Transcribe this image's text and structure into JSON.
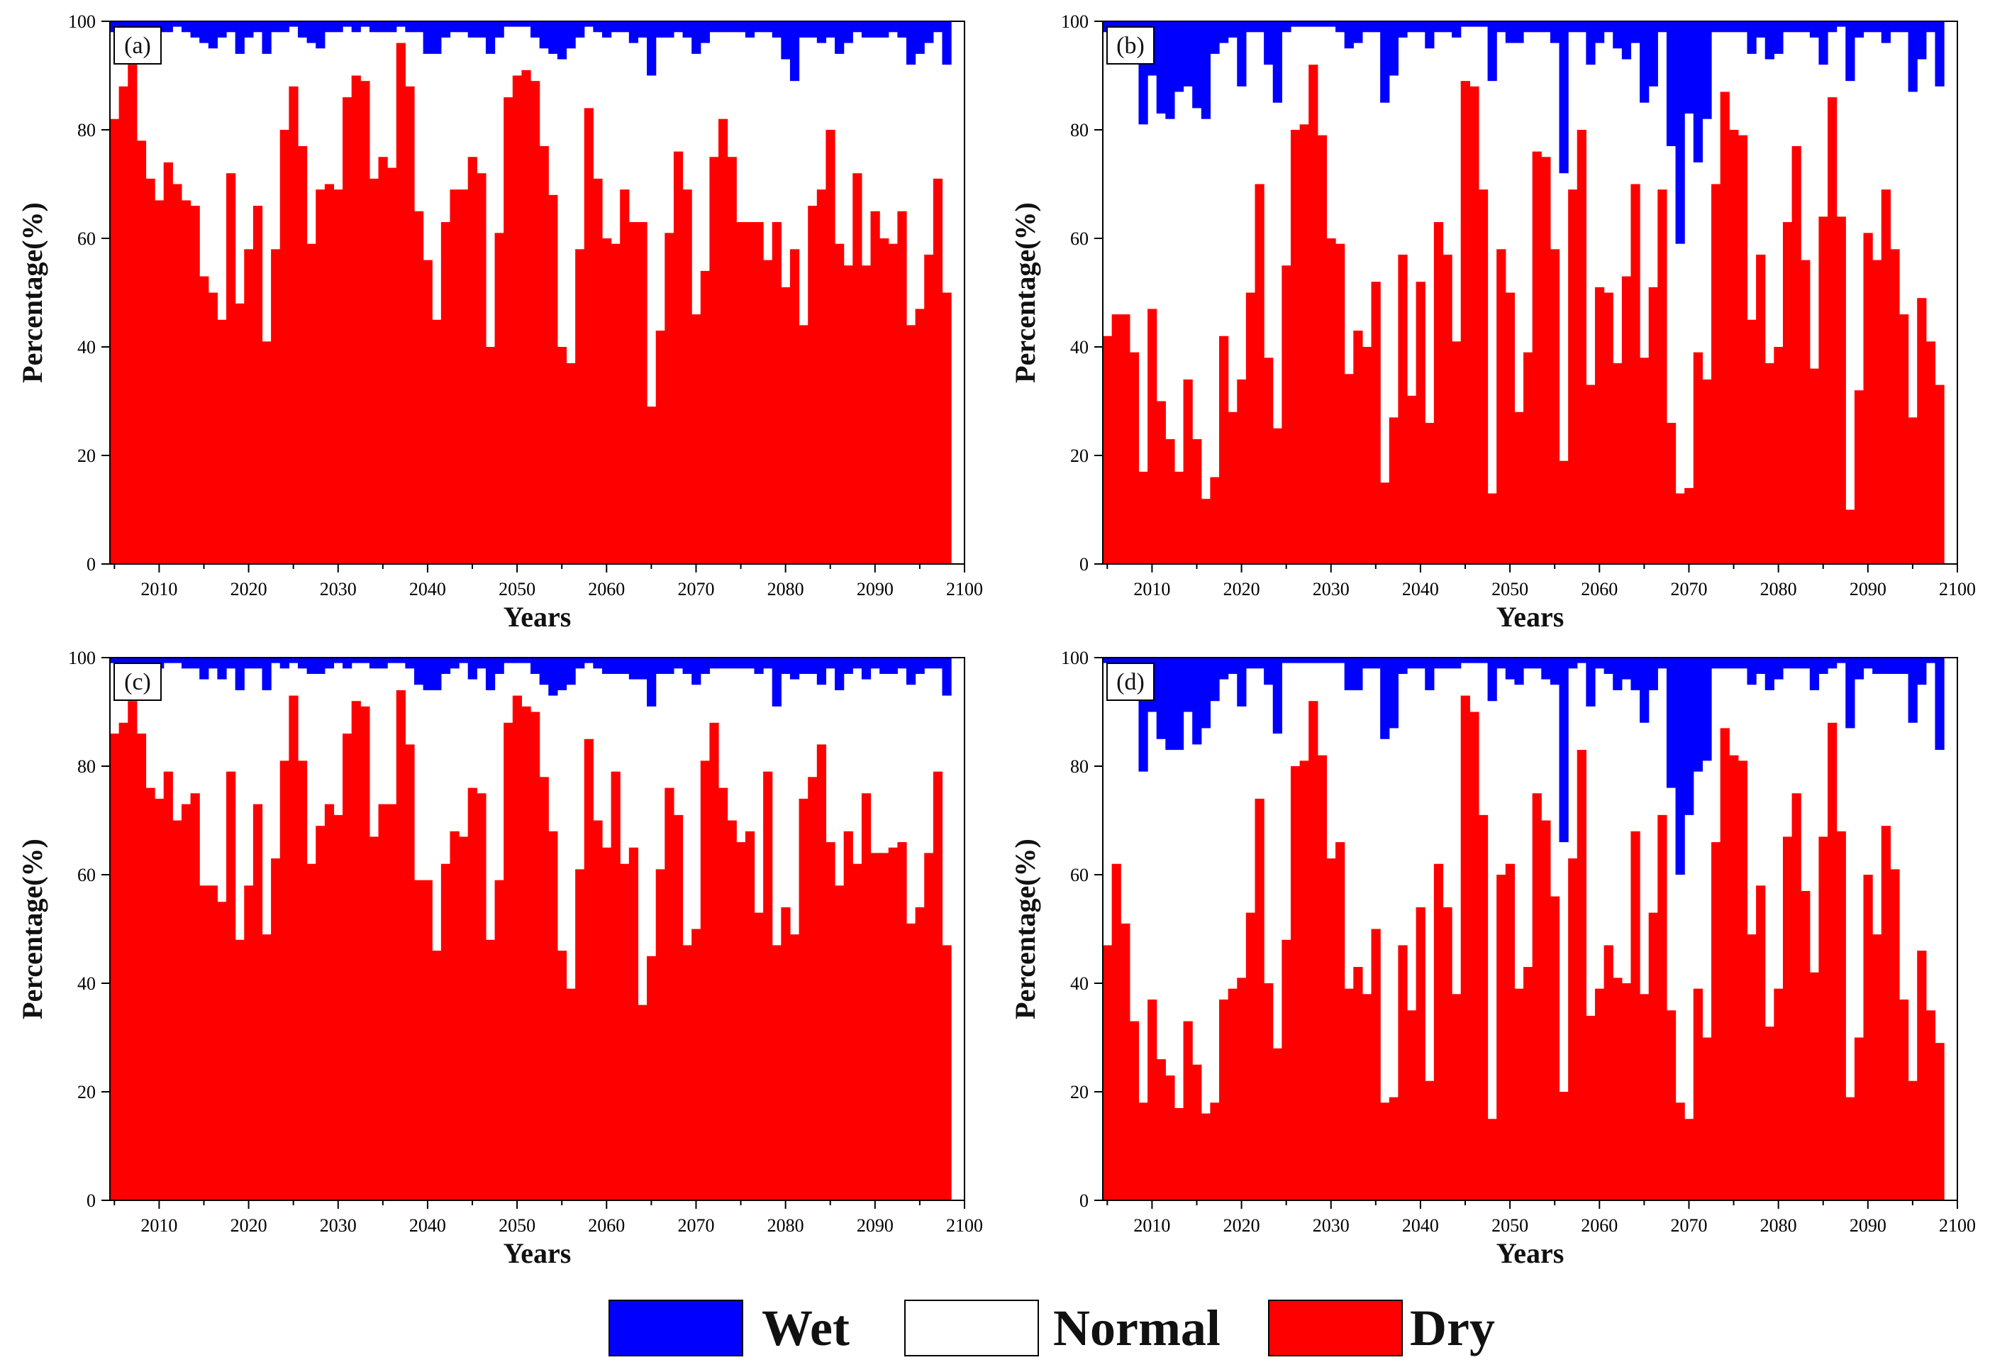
{
  "colors": {
    "wet": "#0000ff",
    "normal": "#ffffff",
    "dry": "#ff0000",
    "axis": "#000000"
  },
  "legend": {
    "items": [
      {
        "label": "Wet",
        "color": "#0000ff"
      },
      {
        "label": "Normal",
        "color": "#ffffff"
      },
      {
        "label": "Dry",
        "color": "#ff0000"
      }
    ]
  },
  "chart_data": [
    {
      "type": "bar",
      "stacked": true,
      "panel_label": "(a)",
      "xlabel": "Years",
      "ylabel": "Percentage(%)",
      "xlim": [
        2004.5,
        2100
      ],
      "ylim": [
        0,
        100
      ],
      "xticks": [
        "2010",
        "2020",
        "2030",
        "2040",
        "2050",
        "2060",
        "2070",
        "2080",
        "2090",
        "2100"
      ],
      "yticks": [
        "0",
        "20",
        "40",
        "60",
        "80",
        "100"
      ],
      "x_start": 2005,
      "series": [
        {
          "name": "Dry",
          "values": [
            82,
            88,
            92,
            78,
            71,
            67,
            74,
            70,
            67,
            66,
            53,
            50,
            45,
            72,
            48,
            58,
            66,
            41,
            58,
            80,
            88,
            77,
            59,
            69,
            70,
            69,
            86,
            90,
            89,
            71,
            75,
            73,
            96,
            88,
            65,
            56,
            45,
            63,
            69,
            69,
            75,
            72,
            40,
            61,
            86,
            90,
            91,
            89,
            77,
            68,
            40,
            37,
            58,
            84,
            71,
            60,
            59,
            69,
            63,
            63,
            29,
            43,
            61,
            76,
            69,
            46,
            54,
            75,
            82,
            75,
            63,
            63,
            63,
            56,
            63,
            51,
            58,
            44,
            66,
            69,
            80,
            59,
            55,
            72,
            55,
            65,
            60,
            59,
            65,
            44,
            47,
            57,
            71,
            50
          ]
        },
        {
          "name": "Wet",
          "values": [
            2,
            1,
            3,
            2,
            2,
            2,
            2,
            1,
            2,
            3,
            4,
            5,
            3,
            2,
            6,
            3,
            2,
            6,
            2,
            2,
            1,
            3,
            4,
            5,
            2,
            2,
            1,
            2,
            1,
            2,
            2,
            2,
            1,
            2,
            2,
            6,
            6,
            3,
            2,
            2,
            3,
            3,
            6,
            3,
            1,
            1,
            1,
            3,
            5,
            6,
            7,
            5,
            3,
            1,
            2,
            3,
            2,
            2,
            4,
            3,
            10,
            3,
            3,
            2,
            3,
            6,
            4,
            2,
            2,
            2,
            2,
            3,
            2,
            2,
            3,
            7,
            11,
            3,
            3,
            4,
            3,
            6,
            4,
            2,
            3,
            3,
            3,
            2,
            3,
            8,
            6,
            4,
            2,
            8
          ]
        }
      ]
    },
    {
      "type": "bar",
      "stacked": true,
      "panel_label": "(b)",
      "xlabel": "Years",
      "ylabel": "Percentage(%)",
      "xlim": [
        2004.5,
        2100
      ],
      "ylim": [
        0,
        100
      ],
      "xticks": [
        "2010",
        "2020",
        "2030",
        "2040",
        "2050",
        "2060",
        "2070",
        "2080",
        "2090",
        "2100"
      ],
      "yticks": [
        "0",
        "20",
        "40",
        "60",
        "80",
        "100"
      ],
      "x_start": 2005,
      "series": [
        {
          "name": "Dry",
          "values": [
            42,
            46,
            46,
            39,
            17,
            47,
            30,
            23,
            17,
            34,
            23,
            12,
            16,
            42,
            28,
            34,
            50,
            70,
            38,
            25,
            55,
            80,
            81,
            92,
            79,
            60,
            59,
            35,
            43,
            40,
            52,
            15,
            27,
            57,
            31,
            52,
            26,
            63,
            57,
            41,
            89,
            88,
            69,
            13,
            58,
            50,
            28,
            39,
            76,
            75,
            58,
            19,
            69,
            80,
            33,
            51,
            50,
            37,
            53,
            70,
            38,
            51,
            69,
            26,
            13,
            14,
            39,
            34,
            70,
            87,
            80,
            79,
            45,
            57,
            37,
            40,
            63,
            77,
            56,
            36,
            64,
            86,
            64,
            10,
            32,
            61,
            56,
            69,
            58,
            46,
            27,
            49,
            41,
            33
          ]
        },
        {
          "name": "Wet",
          "values": [
            2,
            2,
            2,
            4,
            19,
            10,
            17,
            18,
            13,
            12,
            16,
            18,
            6,
            4,
            3,
            12,
            2,
            2,
            8,
            15,
            2,
            1,
            1,
            1,
            1,
            1,
            2,
            5,
            4,
            2,
            2,
            15,
            10,
            3,
            2,
            2,
            5,
            2,
            2,
            3,
            1,
            1,
            1,
            11,
            2,
            4,
            4,
            2,
            2,
            2,
            4,
            28,
            2,
            2,
            8,
            4,
            2,
            5,
            7,
            4,
            15,
            12,
            2,
            23,
            41,
            17,
            26,
            18,
            2,
            2,
            2,
            2,
            6,
            3,
            7,
            6,
            2,
            2,
            2,
            3,
            8,
            2,
            1,
            11,
            3,
            2,
            2,
            4,
            2,
            2,
            13,
            7,
            2,
            12
          ]
        }
      ]
    },
    {
      "type": "bar",
      "stacked": true,
      "panel_label": "(c)",
      "xlabel": "Years",
      "ylabel": "Percentage(%)",
      "xlim": [
        2004.5,
        2100
      ],
      "ylim": [
        0,
        100
      ],
      "xticks": [
        "2010",
        "2020",
        "2030",
        "2040",
        "2050",
        "2060",
        "2070",
        "2080",
        "2090",
        "2100"
      ],
      "yticks": [
        "0",
        "20",
        "40",
        "60",
        "80",
        "100"
      ],
      "x_start": 2005,
      "series": [
        {
          "name": "Dry",
          "values": [
            86,
            88,
            92,
            86,
            76,
            74,
            79,
            70,
            73,
            75,
            58,
            58,
            55,
            79,
            48,
            58,
            73,
            49,
            63,
            81,
            93,
            81,
            62,
            69,
            73,
            71,
            86,
            92,
            91,
            67,
            73,
            73,
            94,
            84,
            59,
            59,
            46,
            62,
            68,
            67,
            76,
            75,
            48,
            59,
            88,
            93,
            91,
            90,
            78,
            68,
            46,
            39,
            61,
            85,
            70,
            65,
            79,
            62,
            65,
            36,
            45,
            61,
            76,
            71,
            47,
            50,
            81,
            88,
            76,
            70,
            66,
            68,
            53,
            79,
            47,
            54,
            49,
            74,
            78,
            84,
            66,
            58,
            68,
            62,
            75,
            64,
            64,
            65,
            66,
            51,
            54,
            64,
            79,
            47
          ]
        },
        {
          "name": "Wet",
          "values": [
            1,
            1,
            2,
            1,
            2,
            2,
            1,
            1,
            2,
            2,
            4,
            2,
            4,
            2,
            6,
            2,
            2,
            6,
            1,
            2,
            1,
            2,
            3,
            3,
            2,
            1,
            2,
            1,
            1,
            2,
            2,
            1,
            1,
            2,
            5,
            6,
            6,
            3,
            2,
            1,
            4,
            2,
            6,
            3,
            1,
            1,
            1,
            3,
            5,
            7,
            6,
            5,
            2,
            1,
            2,
            3,
            3,
            3,
            4,
            4,
            9,
            3,
            3,
            2,
            3,
            5,
            3,
            2,
            2,
            2,
            2,
            2,
            3,
            2,
            9,
            3,
            4,
            3,
            3,
            5,
            2,
            6,
            3,
            2,
            4,
            2,
            3,
            3,
            2,
            5,
            3,
            2,
            2,
            7
          ]
        }
      ]
    },
    {
      "type": "bar",
      "stacked": true,
      "panel_label": "(d)",
      "xlabel": "Years",
      "ylabel": "Percentage(%)",
      "xlim": [
        2004.5,
        2100
      ],
      "ylim": [
        0,
        100
      ],
      "xticks": [
        "2010",
        "2020",
        "2030",
        "2040",
        "2050",
        "2060",
        "2070",
        "2080",
        "2090",
        "2100"
      ],
      "yticks": [
        "0",
        "20",
        "40",
        "60",
        "80",
        "100"
      ],
      "x_start": 2005,
      "series": [
        {
          "name": "Dry",
          "values": [
            47,
            62,
            51,
            33,
            18,
            37,
            26,
            23,
            17,
            33,
            25,
            16,
            18,
            37,
            39,
            41,
            53,
            74,
            40,
            28,
            48,
            80,
            81,
            92,
            82,
            63,
            66,
            39,
            43,
            38,
            50,
            18,
            19,
            47,
            35,
            54,
            22,
            62,
            54,
            38,
            93,
            90,
            71,
            15,
            60,
            62,
            39,
            43,
            75,
            70,
            56,
            20,
            63,
            83,
            34,
            39,
            47,
            41,
            40,
            68,
            38,
            53,
            71,
            35,
            18,
            15,
            39,
            30,
            66,
            87,
            82,
            81,
            49,
            58,
            32,
            39,
            67,
            75,
            57,
            42,
            67,
            88,
            68,
            19,
            30,
            60,
            49,
            69,
            61,
            37,
            22,
            46,
            35,
            29
          ]
        },
        {
          "name": "Wet",
          "values": [
            1,
            1,
            1,
            2,
            21,
            10,
            15,
            17,
            17,
            10,
            16,
            13,
            8,
            4,
            3,
            9,
            2,
            2,
            5,
            14,
            1,
            1,
            1,
            1,
            1,
            1,
            1,
            6,
            6,
            2,
            2,
            15,
            13,
            3,
            2,
            2,
            6,
            2,
            2,
            2,
            1,
            1,
            1,
            8,
            2,
            4,
            5,
            2,
            2,
            4,
            5,
            34,
            2,
            1,
            9,
            2,
            3,
            6,
            4,
            6,
            12,
            6,
            2,
            24,
            40,
            29,
            21,
            19,
            2,
            2,
            2,
            2,
            5,
            3,
            6,
            4,
            2,
            2,
            2,
            6,
            3,
            2,
            1,
            13,
            4,
            2,
            3,
            3,
            3,
            3,
            12,
            5,
            1,
            17
          ]
        }
      ]
    }
  ]
}
